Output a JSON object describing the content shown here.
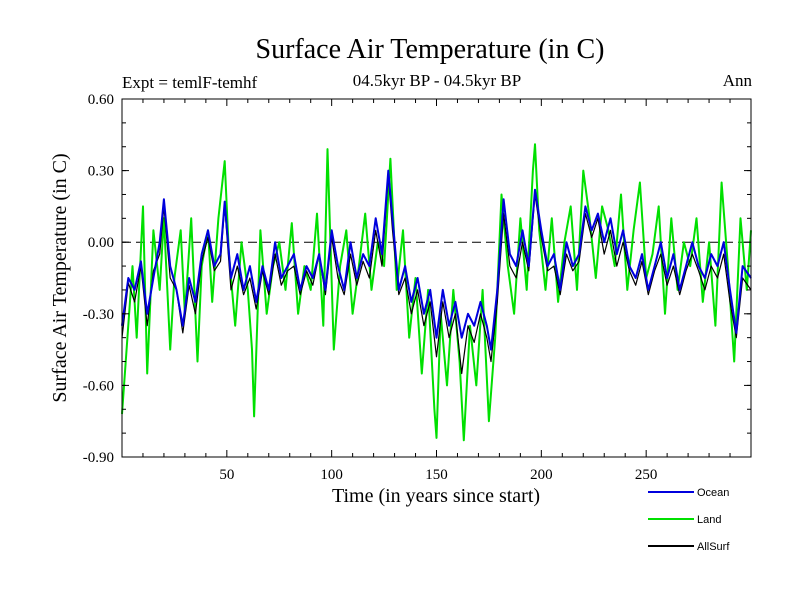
{
  "chart_data": {
    "type": "line",
    "title": "Surface Air Temperature (in C)",
    "subtitle": "04.5kyr BP - 04.5kyr BP",
    "left_label": "Expt = temlF-temhf",
    "right_label": "Ann",
    "xlabel": "Time (in years since start)",
    "ylabel": "Surface Air Temperature (in C)",
    "xlim": [
      0,
      300
    ],
    "ylim": [
      -0.9,
      0.6
    ],
    "xticks": [
      50,
      100,
      150,
      200,
      250
    ],
    "yticks": [
      0.6,
      0.3,
      0.0,
      -0.3,
      -0.6,
      -0.9
    ],
    "ytick_labels": [
      "0.60",
      "0.30",
      "0.00",
      "-0.30",
      "-0.60",
      "-0.90"
    ],
    "zero_line": "dashed",
    "legend_position": "bottom-right",
    "series": [
      {
        "name": "Land",
        "color": "#00e000",
        "x": [
          0,
          5,
          7,
          10,
          12,
          15,
          18,
          20,
          23,
          25,
          28,
          30,
          33,
          36,
          38,
          41,
          43,
          46,
          49,
          51,
          54,
          57,
          60,
          62,
          63,
          66,
          69,
          72,
          75,
          78,
          81,
          84,
          87,
          90,
          93,
          96,
          98,
          101,
          104,
          107,
          110,
          113,
          116,
          119,
          122,
          125,
          128,
          131,
          134,
          137,
          140,
          143,
          146,
          149,
          150,
          152,
          155,
          158,
          161,
          163,
          166,
          169,
          172,
          175,
          178,
          181,
          184,
          187,
          190,
          193,
          196,
          197,
          199,
          202,
          205,
          208,
          211,
          214,
          217,
          220,
          223,
          226,
          229,
          232,
          235,
          238,
          241,
          244,
          247,
          250,
          253,
          256,
          259,
          262,
          265,
          268,
          271,
          274,
          277,
          280,
          283,
          286,
          289,
          292,
          295,
          298,
          300
        ],
        "values": [
          -0.72,
          -0.1,
          -0.4,
          0.15,
          -0.55,
          0.05,
          -0.2,
          0.1,
          -0.45,
          -0.15,
          0.05,
          -0.3,
          0.1,
          -0.5,
          -0.1,
          0.05,
          -0.25,
          0.1,
          0.34,
          -0.05,
          -0.35,
          0.0,
          -0.2,
          -0.45,
          -0.73,
          0.05,
          -0.3,
          -0.1,
          0.0,
          -0.2,
          0.08,
          -0.3,
          -0.1,
          -0.2,
          0.12,
          -0.35,
          0.39,
          -0.45,
          -0.1,
          0.05,
          -0.3,
          -0.1,
          0.12,
          -0.2,
          0.0,
          -0.1,
          0.35,
          -0.2,
          0.05,
          -0.4,
          -0.15,
          -0.55,
          -0.2,
          -0.7,
          -0.82,
          -0.3,
          -0.6,
          -0.2,
          -0.5,
          -0.83,
          -0.35,
          -0.6,
          -0.2,
          -0.75,
          -0.4,
          0.2,
          -0.1,
          -0.3,
          0.1,
          -0.2,
          0.3,
          0.41,
          0.05,
          -0.2,
          0.1,
          -0.25,
          0.0,
          0.15,
          -0.2,
          0.3,
          0.1,
          -0.15,
          0.15,
          0.05,
          -0.1,
          0.2,
          -0.2,
          0.05,
          0.25,
          -0.15,
          -0.05,
          0.15,
          -0.3,
          0.1,
          -0.2,
          0.0,
          -0.1,
          0.1,
          -0.25,
          0.0,
          -0.35,
          0.25,
          -0.1,
          -0.5,
          0.1,
          -0.2,
          0.05
        ]
      },
      {
        "name": "Ocean",
        "color": "#0000dd",
        "x": [
          0,
          3,
          6,
          9,
          12,
          15,
          18,
          20,
          23,
          26,
          29,
          32,
          35,
          38,
          41,
          44,
          47,
          49,
          52,
          55,
          58,
          61,
          64,
          67,
          70,
          73,
          76,
          79,
          82,
          85,
          88,
          91,
          94,
          97,
          100,
          103,
          106,
          109,
          112,
          115,
          118,
          121,
          124,
          127,
          129,
          132,
          135,
          138,
          141,
          144,
          147,
          150,
          153,
          156,
          159,
          162,
          165,
          168,
          171,
          174,
          176,
          179,
          182,
          185,
          188,
          191,
          194,
          197,
          200,
          203,
          206,
          209,
          212,
          215,
          218,
          221,
          224,
          227,
          230,
          233,
          236,
          239,
          242,
          245,
          248,
          251,
          254,
          257,
          260,
          263,
          266,
          269,
          272,
          275,
          278,
          281,
          284,
          287,
          290,
          293,
          296,
          300
        ],
        "values": [
          -0.35,
          -0.15,
          -0.2,
          -0.08,
          -0.3,
          -0.15,
          0.0,
          0.18,
          -0.1,
          -0.2,
          -0.35,
          -0.15,
          -0.25,
          -0.05,
          0.05,
          -0.1,
          -0.05,
          0.17,
          -0.15,
          -0.05,
          -0.2,
          -0.1,
          -0.25,
          -0.1,
          -0.2,
          0.0,
          -0.15,
          -0.1,
          -0.05,
          -0.2,
          -0.1,
          -0.15,
          -0.05,
          -0.2,
          0.05,
          -0.1,
          -0.2,
          0.0,
          -0.15,
          -0.05,
          -0.1,
          0.1,
          -0.05,
          0.3,
          0.1,
          -0.2,
          -0.1,
          -0.25,
          -0.15,
          -0.3,
          -0.2,
          -0.4,
          -0.2,
          -0.35,
          -0.25,
          -0.4,
          -0.3,
          -0.35,
          -0.25,
          -0.35,
          -0.45,
          -0.2,
          0.18,
          -0.05,
          -0.1,
          0.05,
          -0.1,
          0.22,
          0.05,
          -0.1,
          -0.05,
          -0.2,
          0.0,
          -0.1,
          -0.05,
          0.15,
          0.05,
          0.12,
          0.0,
          0.1,
          -0.05,
          0.05,
          -0.1,
          -0.15,
          -0.05,
          -0.2,
          -0.1,
          0.0,
          -0.15,
          -0.05,
          -0.2,
          -0.1,
          0.0,
          -0.1,
          -0.15,
          -0.05,
          -0.1,
          0.0,
          -0.2,
          -0.38,
          -0.1,
          -0.15
        ]
      },
      {
        "name": "AllSurf",
        "color": "#000000",
        "x": [
          0,
          3,
          6,
          9,
          12,
          15,
          18,
          20,
          23,
          26,
          29,
          32,
          35,
          38,
          41,
          44,
          47,
          49,
          52,
          55,
          58,
          61,
          64,
          67,
          70,
          73,
          76,
          79,
          82,
          85,
          88,
          91,
          94,
          97,
          100,
          103,
          106,
          109,
          112,
          115,
          118,
          121,
          124,
          127,
          129,
          132,
          135,
          138,
          141,
          144,
          147,
          150,
          153,
          156,
          159,
          162,
          165,
          168,
          171,
          174,
          176,
          179,
          182,
          185,
          188,
          191,
          194,
          197,
          200,
          203,
          206,
          209,
          212,
          215,
          218,
          221,
          224,
          227,
          230,
          233,
          236,
          239,
          242,
          245,
          248,
          251,
          254,
          257,
          260,
          263,
          266,
          269,
          272,
          275,
          278,
          281,
          284,
          287,
          290,
          293,
          296,
          300
        ],
        "values": [
          -0.4,
          -0.17,
          -0.25,
          -0.1,
          -0.35,
          -0.12,
          -0.05,
          0.15,
          -0.15,
          -0.2,
          -0.38,
          -0.18,
          -0.3,
          -0.08,
          0.02,
          -0.12,
          -0.08,
          0.15,
          -0.2,
          -0.1,
          -0.22,
          -0.15,
          -0.28,
          -0.12,
          -0.22,
          -0.05,
          -0.18,
          -0.12,
          -0.1,
          -0.22,
          -0.12,
          -0.18,
          -0.05,
          -0.22,
          0.02,
          -0.15,
          -0.22,
          -0.05,
          -0.18,
          -0.08,
          -0.15,
          0.05,
          -0.1,
          0.28,
          0.05,
          -0.22,
          -0.15,
          -0.3,
          -0.2,
          -0.35,
          -0.25,
          -0.48,
          -0.25,
          -0.4,
          -0.3,
          -0.55,
          -0.35,
          -0.42,
          -0.3,
          -0.4,
          -0.5,
          -0.25,
          0.12,
          -0.1,
          -0.15,
          0.0,
          -0.12,
          0.2,
          0.02,
          -0.12,
          -0.1,
          -0.22,
          -0.05,
          -0.12,
          -0.08,
          0.12,
          0.02,
          0.1,
          -0.05,
          0.05,
          -0.1,
          0.0,
          -0.12,
          -0.18,
          -0.08,
          -0.22,
          -0.12,
          -0.05,
          -0.18,
          -0.1,
          -0.22,
          -0.12,
          -0.05,
          -0.12,
          -0.2,
          -0.1,
          -0.15,
          -0.05,
          -0.25,
          -0.4,
          -0.15,
          -0.2
        ]
      }
    ]
  }
}
